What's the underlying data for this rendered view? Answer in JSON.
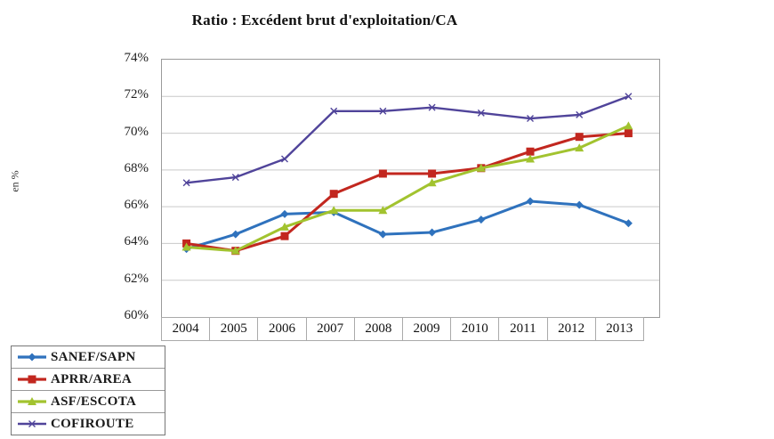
{
  "title": "Ratio : Excédent brut d'exploitation/CA",
  "y_axis": {
    "label": "en %",
    "ticks": [
      "74%",
      "72%",
      "70%",
      "68%",
      "66%",
      "64%",
      "62%",
      "60%"
    ]
  },
  "chart_data": {
    "type": "line",
    "title": "Ratio : Excédent brut d'exploitation/CA",
    "ylabel": "en %",
    "ylim": [
      60,
      74
    ],
    "y_tick_step": 2,
    "grid": true,
    "legend_position": "bottom-left",
    "categories": [
      "2004",
      "2005",
      "2006",
      "2007",
      "2008",
      "2009",
      "2010",
      "2011",
      "2012",
      "2013"
    ],
    "series": [
      {
        "name": "SANEF/SAPN",
        "color": "#2f72bd",
        "marker": "diamond",
        "values": [
          63.7,
          64.5,
          65.6,
          65.7,
          64.5,
          64.6,
          65.3,
          66.3,
          66.1,
          65.1
        ]
      },
      {
        "name": "APRR/AREA",
        "color": "#c2271f",
        "marker": "square",
        "values": [
          64.0,
          63.6,
          64.4,
          66.7,
          67.8,
          67.8,
          68.1,
          69.0,
          69.8,
          70.0
        ]
      },
      {
        "name": "ASF/ESCOTA",
        "color": "#a2c32f",
        "marker": "triangle",
        "values": [
          63.8,
          63.6,
          64.9,
          65.8,
          65.8,
          67.3,
          68.1,
          68.6,
          69.2,
          70.4
        ]
      },
      {
        "name": "COFIROUTE",
        "color": "#50449a",
        "marker": "x",
        "values": [
          67.3,
          67.6,
          68.6,
          71.2,
          71.2,
          71.4,
          71.1,
          70.8,
          71.0,
          72.0
        ]
      }
    ]
  },
  "colors": {
    "gridline": "#c9c9c9",
    "plot_border": "#9a9a9a"
  }
}
